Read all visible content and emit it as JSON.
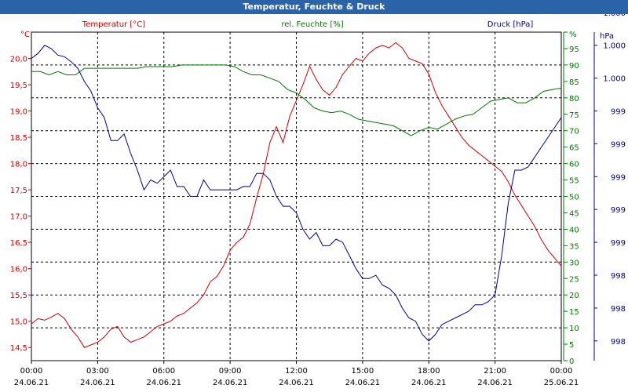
{
  "window_title": "Temperatur, Feuchte & Druck",
  "chart_data": {
    "type": "line",
    "title": "Temperatur, Feuchte & Druck",
    "x_ticks": [
      {
        "time": "00:00",
        "date": "24.06.21"
      },
      {
        "time": "03:00",
        "date": "24.06.21"
      },
      {
        "time": "06:00",
        "date": "24.06.21"
      },
      {
        "time": "09:00",
        "date": "24.06.21"
      },
      {
        "time": "12:00",
        "date": "24.06.21"
      },
      {
        "time": "15:00",
        "date": "24.06.21"
      },
      {
        "time": "18:00",
        "date": "24.06.21"
      },
      {
        "time": "21:00",
        "date": "24.06.21"
      },
      {
        "time": "00:00",
        "date": "25.06.21"
      }
    ],
    "xlim_hours": [
      0,
      24
    ],
    "axes": {
      "temperature": {
        "unit_label": "°C",
        "legend": "Temperatur [°C]",
        "color": "#cc0000",
        "ylim": [
          14.25,
          20.5
        ],
        "ticks": [
          "14,5",
          "15,0",
          "15,5",
          "16,0",
          "16,5",
          "17,0",
          "17,5",
          "18,0",
          "18,5",
          "19,0",
          "19,5",
          "20,0"
        ],
        "tick_values": [
          14.5,
          15.0,
          15.5,
          16.0,
          16.5,
          17.0,
          17.5,
          18.0,
          18.5,
          19.0,
          19.5,
          20.0
        ]
      },
      "humidity": {
        "unit_label": "%",
        "legend": "rel. Feuchte [%]",
        "color": "#007700",
        "ylim": [
          0,
          100
        ],
        "ticks": [
          "0",
          "5",
          "10",
          "15",
          "20",
          "25",
          "30",
          "35",
          "40",
          "45",
          "50",
          "55",
          "60",
          "65",
          "70",
          "75",
          "80",
          "85",
          "90",
          "95",
          "100"
        ],
        "tick_values": [
          0,
          5,
          10,
          15,
          20,
          25,
          30,
          35,
          40,
          45,
          50,
          55,
          60,
          65,
          70,
          75,
          80,
          85,
          90,
          95,
          100
        ]
      },
      "pressure": {
        "unit_label": "hPa",
        "legend": "Druck [hPa]",
        "color": "#00008b",
        "ylim": [
          0,
          100
        ],
        "ticks": [
          "998",
          "998",
          "998",
          "999",
          "999",
          "999",
          "999",
          "999",
          "1.000",
          "1.000",
          "1.000"
        ],
        "tick_values": [
          10,
          20,
          30,
          40,
          50,
          60,
          70,
          80,
          90,
          100,
          110
        ]
      }
    },
    "series": [
      {
        "name": "Temperatur",
        "axis": "temperature",
        "x": [
          0,
          0.3,
          0.6,
          0.9,
          1.2,
          1.5,
          1.8,
          2.1,
          2.4,
          2.7,
          3.0,
          3.3,
          3.6,
          3.9,
          4.2,
          4.5,
          4.8,
          5.1,
          5.4,
          5.7,
          6.0,
          6.3,
          6.6,
          6.9,
          7.2,
          7.5,
          7.8,
          8.1,
          8.4,
          8.7,
          9.0,
          9.3,
          9.6,
          9.9,
          10.2,
          10.5,
          10.8,
          11.1,
          11.4,
          11.7,
          12.0,
          12.3,
          12.6,
          12.9,
          13.2,
          13.5,
          13.8,
          14.1,
          14.4,
          14.7,
          15.0,
          15.3,
          15.6,
          15.9,
          16.2,
          16.5,
          16.8,
          17.1,
          17.4,
          17.7,
          18.0,
          18.3,
          18.6,
          18.9,
          19.2,
          19.5,
          19.8,
          20.1,
          20.4,
          20.7,
          21.0,
          21.3,
          21.6,
          21.9,
          22.2,
          22.5,
          22.8,
          23.1,
          23.4,
          23.7,
          24.0
        ],
        "values": [
          14.95,
          15.05,
          15.02,
          15.08,
          15.15,
          15.05,
          14.85,
          14.7,
          14.5,
          14.55,
          14.6,
          14.7,
          14.85,
          14.9,
          14.7,
          14.6,
          14.65,
          14.7,
          14.8,
          14.9,
          14.95,
          15.0,
          15.1,
          15.15,
          15.25,
          15.35,
          15.5,
          15.75,
          15.85,
          16.05,
          16.35,
          16.5,
          16.6,
          16.85,
          17.35,
          17.8,
          18.4,
          18.7,
          18.4,
          18.9,
          19.2,
          19.5,
          19.85,
          19.6,
          19.4,
          19.3,
          19.45,
          19.7,
          19.85,
          20.0,
          19.95,
          20.1,
          20.2,
          20.25,
          20.2,
          20.3,
          20.2,
          20.0,
          19.95,
          19.9,
          19.7,
          19.35,
          19.1,
          18.9,
          18.7,
          18.5,
          18.35,
          18.25,
          18.15,
          18.05,
          17.95,
          17.85,
          17.65,
          17.4,
          17.2,
          17.0,
          16.8,
          16.55,
          16.35,
          16.2,
          16.05
        ]
      },
      {
        "name": "rel. Feuchte",
        "axis": "humidity",
        "x": [
          0,
          0.4,
          0.8,
          1.2,
          1.6,
          2.0,
          2.4,
          2.8,
          3.2,
          3.6,
          4.0,
          4.4,
          4.8,
          5.2,
          5.6,
          6.0,
          6.4,
          6.8,
          7.2,
          7.6,
          8.0,
          8.4,
          8.8,
          9.2,
          9.6,
          10.0,
          10.4,
          10.8,
          11.2,
          11.6,
          12.0,
          12.4,
          12.8,
          13.2,
          13.6,
          14.0,
          14.4,
          14.8,
          15.2,
          15.6,
          16.0,
          16.4,
          16.8,
          17.2,
          17.6,
          18.0,
          18.4,
          18.8,
          19.2,
          19.6,
          20.0,
          20.4,
          20.8,
          21.2,
          21.6,
          22.0,
          22.4,
          22.8,
          23.2,
          23.6,
          24.0
        ],
        "values": [
          88,
          88,
          87,
          88,
          87,
          87,
          89,
          89,
          89,
          89,
          89,
          89,
          89,
          89.5,
          89.5,
          89.5,
          89.5,
          90,
          90,
          90,
          90,
          90,
          90,
          89.5,
          88,
          87,
          87,
          86,
          85,
          82.5,
          81.5,
          79.5,
          77,
          76,
          75.5,
          76,
          75,
          73.5,
          73,
          72.5,
          72,
          71.5,
          70,
          68.5,
          70,
          71,
          70.5,
          72,
          73.5,
          74.5,
          75,
          77,
          79,
          79.5,
          80,
          78.5,
          78.5,
          80,
          82,
          82.5,
          83
        ]
      },
      {
        "name": "Druck",
        "axis": "pressure",
        "x": [
          0,
          0.3,
          0.6,
          0.9,
          1.2,
          1.5,
          1.8,
          2.1,
          2.4,
          2.7,
          3.0,
          3.3,
          3.6,
          3.9,
          4.2,
          4.5,
          4.8,
          5.1,
          5.4,
          5.7,
          6.0,
          6.3,
          6.6,
          6.9,
          7.2,
          7.5,
          7.8,
          8.1,
          8.4,
          8.7,
          9.0,
          9.3,
          9.6,
          9.9,
          10.2,
          10.5,
          10.8,
          11.1,
          11.4,
          11.7,
          12.0,
          12.3,
          12.6,
          12.9,
          13.2,
          13.5,
          13.8,
          14.1,
          14.4,
          14.7,
          15.0,
          15.3,
          15.6,
          15.9,
          16.2,
          16.5,
          16.8,
          17.1,
          17.4,
          17.7,
          18.0,
          18.3,
          18.6,
          18.9,
          19.2,
          19.5,
          19.8,
          20.1,
          20.4,
          20.7,
          21.0,
          21.3,
          21.6,
          21.9,
          22.2,
          22.5,
          22.8,
          23.1,
          23.4,
          23.7,
          24.0
        ],
        "values": [
          92,
          93.5,
          96,
          95,
          93,
          92.5,
          91,
          89,
          85,
          82,
          77,
          74,
          67,
          67,
          69,
          63,
          58,
          52,
          55,
          54,
          56,
          58,
          53,
          53,
          50,
          50,
          55,
          52,
          52,
          52,
          52,
          52,
          53,
          53,
          57,
          57,
          55,
          50,
          47,
          47,
          45,
          40,
          37,
          39,
          35,
          35,
          37,
          36,
          32,
          28,
          25,
          25,
          26,
          23,
          22,
          20,
          16,
          13,
          12,
          8,
          6,
          8,
          11,
          12,
          13,
          14,
          15,
          17,
          17,
          18,
          20,
          32,
          48,
          58,
          58,
          59,
          62,
          65,
          68,
          71,
          74
        ]
      }
    ]
  }
}
